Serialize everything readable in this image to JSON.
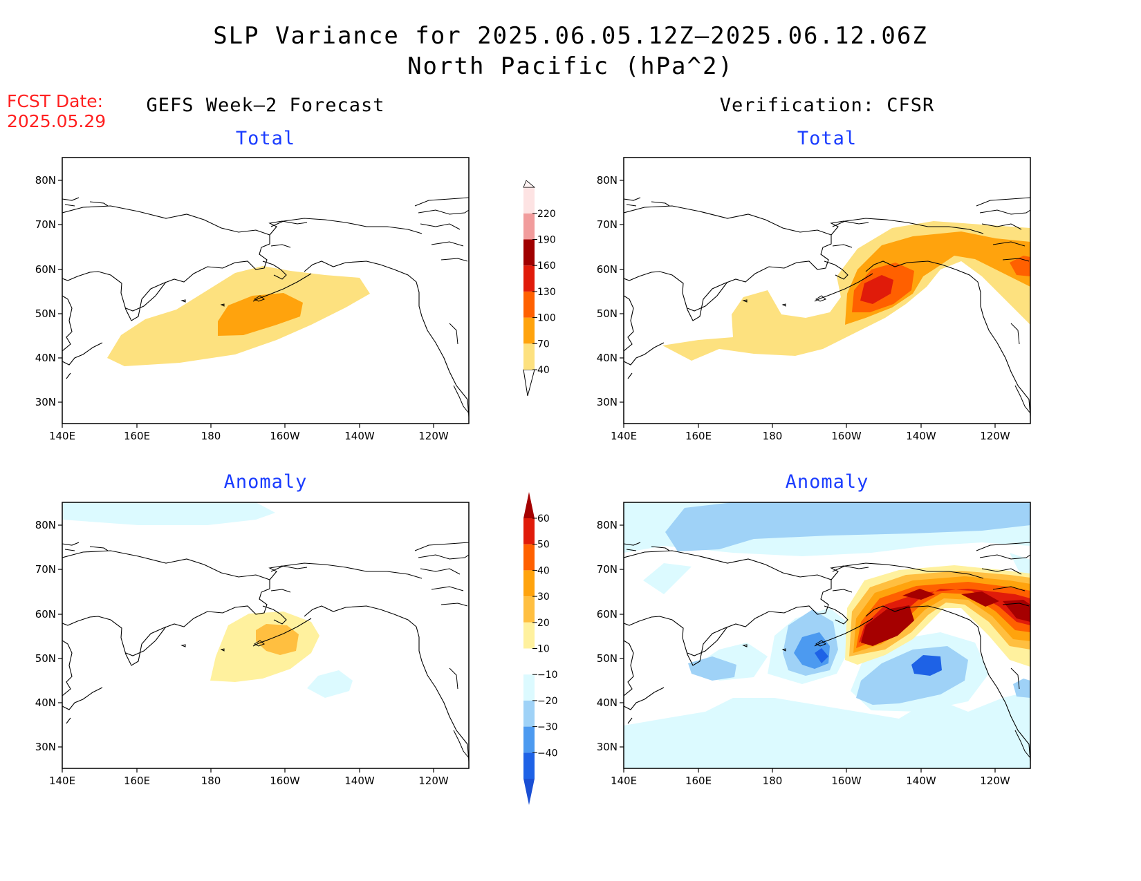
{
  "title": {
    "line1": "SLP Variance for 2025.06.05.12Z–2025.06.12.06Z",
    "line2": "North Pacific (hPa^2)"
  },
  "fcst_date": {
    "label": "FCST Date:",
    "value": "2025.05.29"
  },
  "columns": {
    "left": "GEFS Week–2 Forecast",
    "right": "Verification: CFSR"
  },
  "panels": {
    "tl": "Total",
    "tr": "Total",
    "bl": "Anomaly",
    "br": "Anomaly"
  },
  "axes": {
    "lat_ticks": [
      "80N",
      "70N",
      "60N",
      "50N",
      "40N",
      "30N"
    ],
    "lon_ticks": [
      "140E",
      "160E",
      "180",
      "160W",
      "140W",
      "120W"
    ]
  },
  "colorbar_total": {
    "levels": [
      "40",
      "70",
      "100",
      "130",
      "160",
      "190",
      "220"
    ],
    "colors": [
      "#fde17f",
      "#ffa30d",
      "#ff6000",
      "#e01b0a",
      "#a00000",
      "#f19c9c",
      "#fde3e3"
    ]
  },
  "colorbar_anomaly": {
    "levels": [
      "60",
      "50",
      "40",
      "30",
      "20",
      "10",
      "−10",
      "−20",
      "−30",
      "−40"
    ],
    "colors": [
      "#a50000",
      "#e01b0a",
      "#ff6000",
      "#ffa30d",
      "#ffbf40",
      "#fff19e",
      "#ffffff",
      "#dcfaff",
      "#9fd2f7",
      "#4c9af0",
      "#1e62e6",
      "#1a4fd4"
    ]
  }
}
